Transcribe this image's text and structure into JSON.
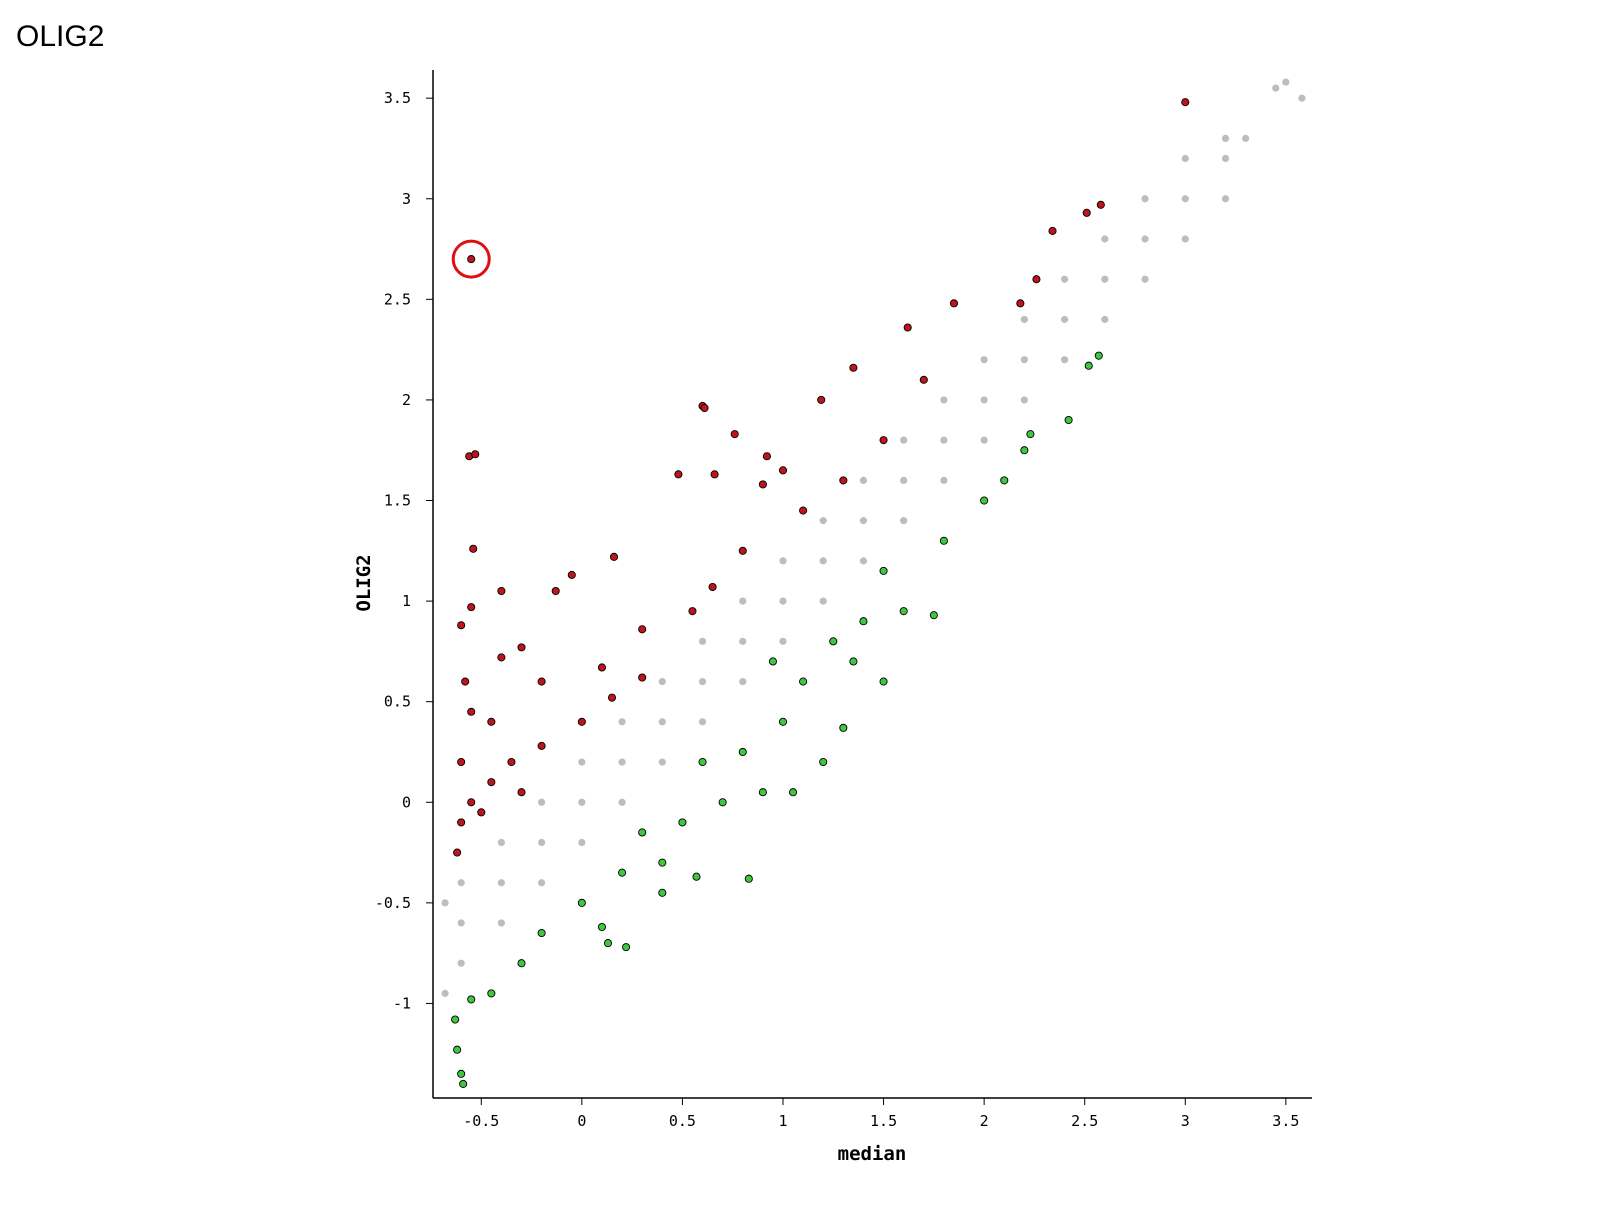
{
  "page_title": "OLIG2",
  "chart_data": {
    "type": "scatter",
    "xlabel": "median",
    "ylabel": "OLIG2",
    "xlim": [
      -0.74,
      3.63
    ],
    "ylim": [
      -1.47,
      3.64
    ],
    "xticks": [
      -0.5,
      0,
      0.5,
      1,
      1.5,
      2,
      2.5,
      3,
      3.5
    ],
    "yticks": [
      -1,
      -0.5,
      0,
      0.5,
      1,
      1.5,
      2,
      2.5,
      3,
      3.5
    ],
    "highlight_index": 0,
    "series": [
      {
        "color": "#bdbdbd",
        "outline": false,
        "x": [
          -0.6,
          -0.4,
          -0.2,
          0,
          0.2,
          0.4,
          0.6,
          0.8,
          1,
          1.2,
          1.4,
          1.6,
          1.8,
          2,
          2.2,
          2.4,
          2.6,
          2.8,
          3,
          3.2,
          -0.6,
          -0.4,
          -0.2,
          0,
          0.2,
          0.4,
          0.6,
          0.8,
          1,
          1.2,
          1.4,
          1.6,
          1.8,
          2,
          2.2,
          2.4,
          2.6,
          2.8,
          3,
          3.2,
          -0.6,
          -0.4,
          -0.2,
          0,
          0.2,
          0.4,
          0.6,
          0.8,
          1,
          1.2,
          1.4,
          1.6,
          1.8,
          2,
          2.2,
          2.4,
          2.6,
          2.8,
          3,
          3.2,
          -0.68,
          -0.68,
          3.45,
          3.5,
          3.58,
          3.3
        ],
        "values": [
          -0.8,
          -0.6,
          -0.4,
          -0.2,
          0,
          0.2,
          0.4,
          0.6,
          0.8,
          1,
          1.2,
          1.4,
          1.6,
          1.8,
          2,
          2.2,
          2.4,
          2.6,
          2.8,
          3,
          -0.6,
          -0.4,
          -0.2,
          0,
          0.2,
          0.4,
          0.6,
          0.8,
          1,
          1.2,
          1.4,
          1.6,
          1.8,
          2,
          2.2,
          2.4,
          2.6,
          2.8,
          3,
          3.2,
          -0.4,
          -0.2,
          0,
          0.2,
          0.4,
          0.6,
          0.8,
          1,
          1.2,
          1.4,
          1.6,
          1.8,
          2,
          2.2,
          2.4,
          2.6,
          2.8,
          3,
          3.2,
          3.3,
          -0.95,
          -0.5,
          3.55,
          3.58,
          3.5,
          3.3
        ]
      },
      {
        "color": "#c0141c",
        "outline": true,
        "x": [
          -0.55,
          3.0,
          -0.56,
          -0.53,
          -0.54,
          -0.55,
          -0.6,
          -0.4,
          -0.13,
          -0.05,
          0.16,
          0.6,
          0.61,
          0.76,
          0.92,
          1.19,
          1.35,
          1.62,
          1.85,
          2.18,
          2.34,
          2.51,
          2.58,
          2.26,
          0.48,
          0.66,
          0.9,
          1.0,
          -0.3,
          -0.4,
          -0.2,
          0.1,
          0.3,
          0.55,
          0.65,
          0.8,
          1.1,
          1.3,
          1.5,
          1.7,
          -0.6,
          -0.55,
          -0.6,
          -0.62,
          -0.5,
          -0.45,
          -0.35,
          -0.3,
          -0.2,
          0.0,
          0.15,
          0.3,
          -0.55,
          -0.58,
          -0.45
        ],
        "values": [
          2.7,
          3.48,
          1.72,
          1.73,
          1.26,
          0.97,
          0.88,
          1.05,
          1.05,
          1.13,
          1.22,
          1.97,
          1.96,
          1.83,
          1.72,
          2.0,
          2.16,
          2.36,
          2.48,
          2.48,
          2.84,
          2.93,
          2.97,
          2.6,
          1.63,
          1.63,
          1.58,
          1.65,
          0.77,
          0.72,
          0.6,
          0.67,
          0.86,
          0.95,
          1.07,
          1.25,
          1.45,
          1.6,
          1.8,
          2.1,
          0.2,
          0.0,
          -0.1,
          -0.25,
          -0.05,
          0.1,
          0.2,
          0.05,
          0.28,
          0.4,
          0.52,
          0.62,
          0.45,
          0.6,
          0.4
        ]
      },
      {
        "color": "#3ec83e",
        "outline": true,
        "x": [
          -0.63,
          -0.62,
          -0.6,
          -0.59,
          -0.55,
          -0.45,
          -0.3,
          -0.2,
          0.1,
          0.13,
          0.22,
          0.0,
          0.2,
          0.4,
          0.57,
          0.83,
          0.5,
          0.7,
          0.9,
          1.05,
          0.8,
          1.0,
          1.3,
          1.1,
          1.25,
          1.5,
          1.4,
          1.6,
          1.75,
          1.5,
          1.8,
          2.0,
          2.1,
          2.2,
          2.23,
          2.42,
          2.52,
          2.57,
          0.3,
          0.6,
          0.95,
          1.2,
          1.35,
          0.4
        ],
        "values": [
          -1.08,
          -1.23,
          -1.35,
          -1.4,
          -0.98,
          -0.95,
          -0.8,
          -0.65,
          -0.62,
          -0.7,
          -0.72,
          -0.5,
          -0.35,
          -0.3,
          -0.37,
          -0.38,
          -0.1,
          0.0,
          0.05,
          0.05,
          0.25,
          0.4,
          0.37,
          0.6,
          0.8,
          0.6,
          0.9,
          0.95,
          0.93,
          1.15,
          1.3,
          1.5,
          1.6,
          1.75,
          1.83,
          1.9,
          2.17,
          2.22,
          -0.15,
          0.2,
          0.7,
          0.2,
          0.7,
          -0.45
        ]
      }
    ]
  }
}
